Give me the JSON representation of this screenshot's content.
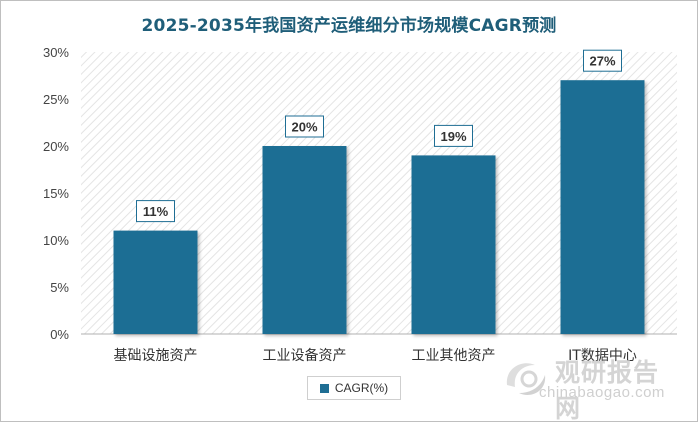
{
  "title": "2025-2035年我国资产运维细分市场规模CAGR预测",
  "legend": {
    "label": "CAGR(%)"
  },
  "watermark": {
    "cn": "观研报告网",
    "en": "chinabaogao.com"
  },
  "colors": {
    "bar": "#1f6e94",
    "title": "#1f5e79",
    "label_border": "#1f6e94"
  },
  "chart_data": {
    "type": "bar",
    "title": "2025-2035年我国资产运维细分市场规模CAGR预测",
    "categories": [
      "基础设施资产",
      "工业设备资产",
      "工业其他资产",
      "IT数据中心"
    ],
    "series": [
      {
        "name": "CAGR(%)",
        "values": [
          11,
          20,
          19,
          27
        ],
        "labels": [
          "11%",
          "20%",
          "19%",
          "27%"
        ]
      }
    ],
    "ylim": [
      0,
      30
    ],
    "yticks": [
      0,
      5,
      10,
      15,
      20,
      25,
      30
    ],
    "ytick_labels": [
      "0%",
      "5%",
      "10%",
      "15%",
      "20%",
      "25%",
      "30%"
    ],
    "grid": false,
    "plot_background": "diagonal-hatch",
    "legend_position": "bottom"
  }
}
